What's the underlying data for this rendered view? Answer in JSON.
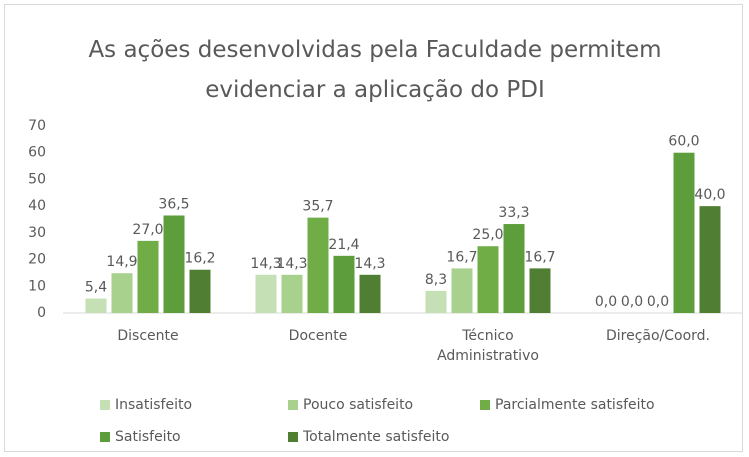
{
  "chart_data": {
    "type": "bar",
    "title": "As ações desenvolvidas pela Faculdade permitem evidenciar a aplicação do PDI",
    "categories": [
      "Discente",
      "Docente",
      "Técnico Administrativo",
      "Direção/Coord."
    ],
    "series": [
      {
        "name": "Insatisfeito",
        "color": "#c5e0b4",
        "values": [
          5.4,
          14.3,
          8.3,
          0.0
        ],
        "value_labels": [
          "5,4",
          "14,3",
          "8,3",
          "0,0"
        ]
      },
      {
        "name": "Pouco satisfeito",
        "color": "#a9d18e",
        "values": [
          14.9,
          14.3,
          16.7,
          0.0
        ],
        "value_labels": [
          "14,9",
          "14,3",
          "16,7",
          "0,0"
        ]
      },
      {
        "name": "Parcialmente satisfeito",
        "color": "#70ad47",
        "values": [
          27.0,
          35.7,
          25.0,
          0.0
        ],
        "value_labels": [
          "27,0",
          "35,7",
          "25,0",
          "0,0"
        ]
      },
      {
        "name": "Satisfeito",
        "color": "#5e9d3c",
        "values": [
          36.5,
          21.4,
          33.3,
          60.0
        ],
        "value_labels": [
          "36,5",
          "21,4",
          "33,3",
          "60,0"
        ]
      },
      {
        "name": "Totalmente satisfeito",
        "color": "#507e32",
        "values": [
          16.2,
          14.3,
          16.7,
          40.0
        ],
        "value_labels": [
          "16,2",
          "14,3",
          "16,7",
          "40,0"
        ]
      }
    ],
    "ylim": [
      0,
      70
    ],
    "yticks": [
      0,
      10,
      20,
      30,
      40,
      50,
      60,
      70
    ],
    "grid": false
  }
}
